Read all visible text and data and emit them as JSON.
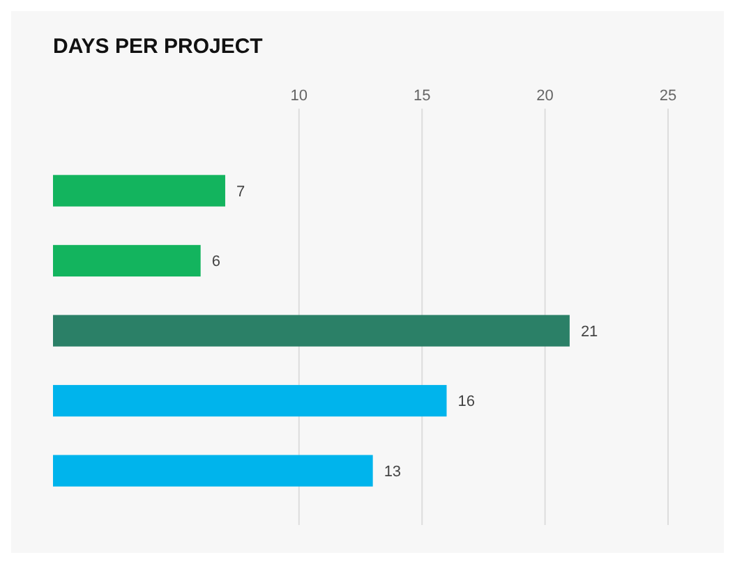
{
  "chart_data": {
    "type": "bar",
    "orientation": "horizontal",
    "title": "DAYS PER PROJECT",
    "categories": [
      null,
      null,
      null,
      null,
      null
    ],
    "values": [
      7,
      6,
      21,
      16,
      13
    ],
    "colors": [
      "#13b45e",
      "#13b45e",
      "#2b8067",
      "#00b4ec",
      "#00b4ec"
    ],
    "xlim": [
      0,
      25
    ],
    "xticks": [
      10,
      15,
      20,
      25
    ],
    "grid": "x",
    "data_labels": true
  }
}
